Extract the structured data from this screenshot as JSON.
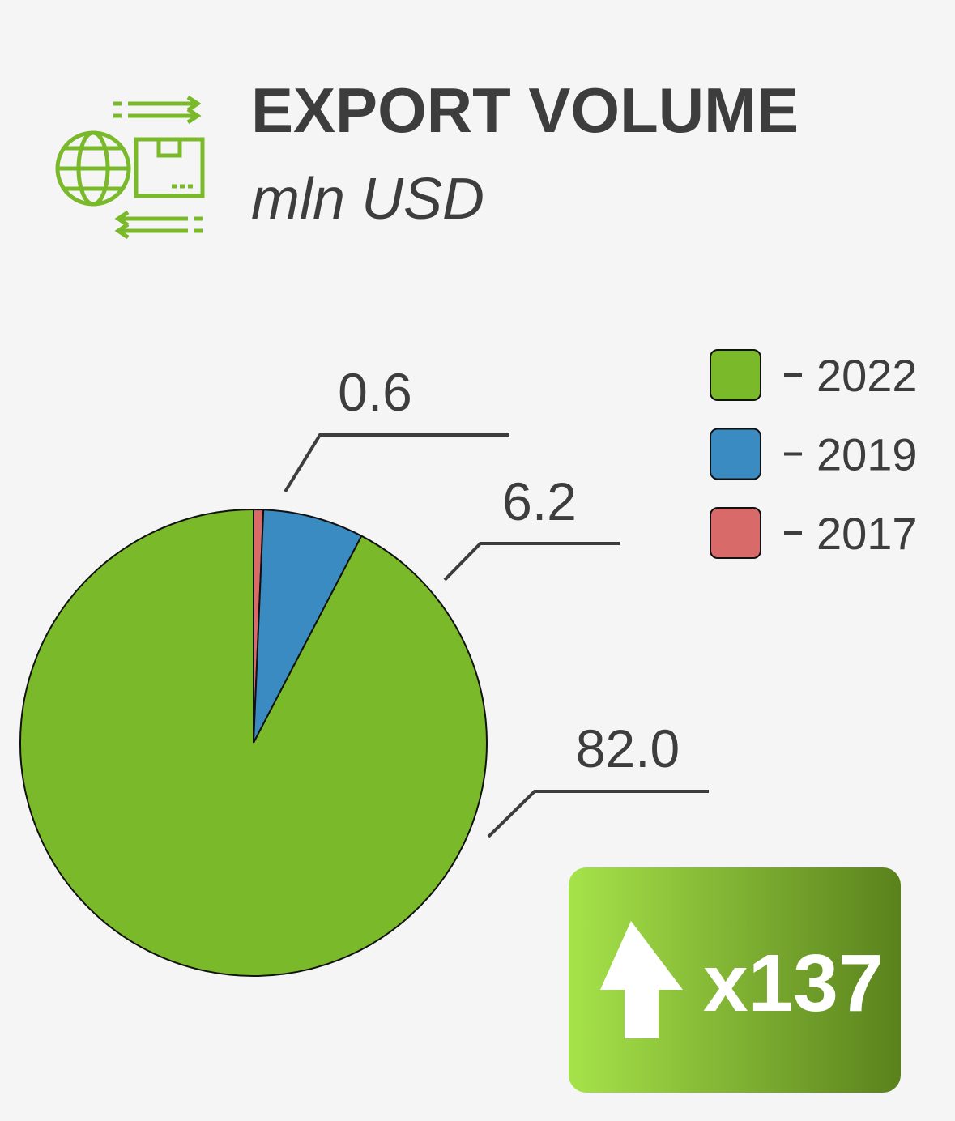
{
  "chart_data": {
    "type": "pie",
    "title": "EXPORT VOLUME",
    "subtitle": "mln USD",
    "categories": [
      "2022",
      "2019",
      "2017"
    ],
    "values": [
      82.0,
      6.2,
      0.6
    ],
    "value_labels": [
      "82.0",
      "6.2",
      "0.6"
    ],
    "colors": [
      "#7ab929",
      "#3a8bc1",
      "#d86a6a"
    ],
    "badge": "x137"
  }
}
